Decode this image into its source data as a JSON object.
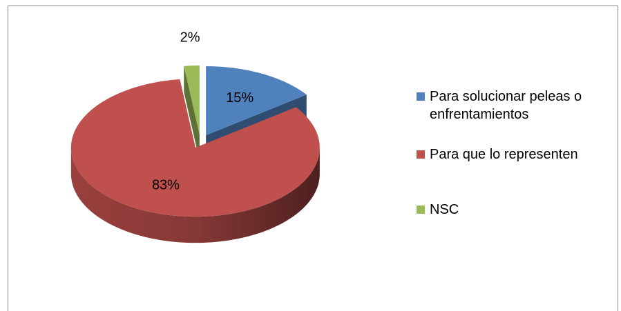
{
  "chart_data": {
    "type": "pie",
    "categories": [
      "Para solucionar peleas o enfrentamientos",
      "Para que lo representen",
      "NSC"
    ],
    "values": [
      15,
      83,
      2
    ],
    "value_labels": [
      "15%",
      "83%",
      "2%"
    ],
    "colors": [
      "#4f81bd",
      "#c0504d",
      "#9bbb59"
    ],
    "legend": "right"
  }
}
